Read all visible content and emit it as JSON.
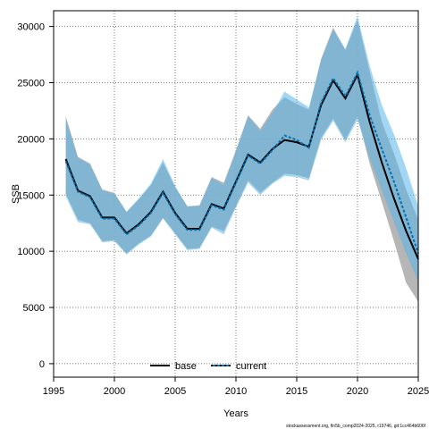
{
  "chart_data": {
    "type": "line",
    "xlabel": "Years",
    "ylabel": "SSB",
    "xlim": [
      1995,
      2025
    ],
    "ylim": [
      -1200,
      31400
    ],
    "xticks": [
      1995,
      2000,
      2005,
      2010,
      2015,
      2020,
      2025
    ],
    "yticks": [
      0,
      5000,
      10000,
      15000,
      20000,
      25000,
      30000
    ],
    "grid": true,
    "legend_position": "bottom-center",
    "x": [
      1996,
      1997,
      1998,
      1999,
      2000,
      2001,
      2002,
      2003,
      2004,
      2005,
      2006,
      2007,
      2008,
      2009,
      2010,
      2011,
      2012,
      2013,
      2014,
      2015,
      2016,
      2017,
      2018,
      2019,
      2020,
      2021,
      2022,
      2023,
      2024,
      2025
    ],
    "series": [
      {
        "name": "base",
        "color": "#000000",
        "band_color": "#a9a9a9",
        "values": [
          18200,
          15400,
          14900,
          13000,
          13000,
          11600,
          12400,
          13500,
          15300,
          13400,
          12000,
          12000,
          14200,
          13800,
          16200,
          18600,
          17900,
          19100,
          19900,
          19700,
          19300,
          23000,
          25200,
          23600,
          25700,
          21500,
          17900,
          14700,
          11800,
          9300
        ],
        "lower": [
          15100,
          12800,
          12500,
          10900,
          11000,
          9800,
          10700,
          11400,
          13000,
          11600,
          10200,
          10300,
          12200,
          11800,
          14000,
          16300,
          15200,
          16100,
          16900,
          16800,
          16500,
          20100,
          21800,
          19900,
          22000,
          17800,
          14400,
          10900,
          7200,
          5500
        ],
        "upper": [
          22000,
          18400,
          17800,
          15500,
          15200,
          13500,
          14600,
          15900,
          17900,
          15700,
          14000,
          14100,
          16600,
          16100,
          19000,
          22100,
          20900,
          22600,
          23700,
          23100,
          22600,
          27100,
          29900,
          27900,
          30600,
          26000,
          21500,
          18700,
          15500,
          12800
        ]
      },
      {
        "name": "current",
        "color": "#0072b2",
        "band_color": "#56b4e9",
        "values": [
          18000,
          15300,
          14800,
          12900,
          12900,
          11500,
          12300,
          13400,
          15200,
          13300,
          11900,
          11900,
          14100,
          13700,
          16100,
          18500,
          17800,
          19000,
          20300,
          19900,
          19200,
          23200,
          25400,
          23800,
          25900,
          22100,
          19100,
          16200,
          13000,
          9800
        ],
        "lower": [
          14900,
          12600,
          12400,
          10800,
          10900,
          9700,
          10600,
          11300,
          12900,
          11500,
          10100,
          10200,
          12100,
          11500,
          13900,
          16100,
          15000,
          16000,
          16700,
          16600,
          16300,
          19900,
          21600,
          19700,
          21700,
          18300,
          15400,
          12600,
          9800,
          7300
        ],
        "upper": [
          21800,
          18300,
          17700,
          15400,
          15100,
          13500,
          14700,
          16000,
          18200,
          15800,
          14000,
          14000,
          16500,
          15900,
          18900,
          22000,
          20700,
          22300,
          24200,
          23500,
          22800,
          27000,
          29700,
          28000,
          30900,
          26500,
          23000,
          20400,
          17400,
          14000
        ]
      }
    ],
    "footnote": "stockassessment.org, fin5b_comp2024-2025, r19746, git:1cc464b606f"
  }
}
